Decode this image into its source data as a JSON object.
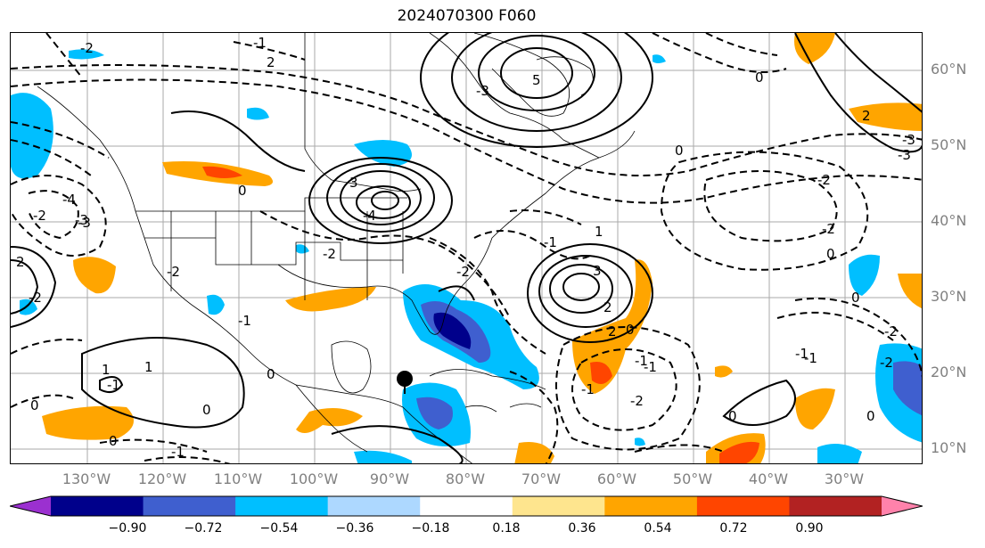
{
  "title": "2024070300 F060",
  "map": {
    "lat_labels": [
      "60°N",
      "50°N",
      "40°N",
      "30°N",
      "20°N",
      "10°N"
    ],
    "lon_labels": [
      "130°W",
      "120°W",
      "110°W",
      "100°W",
      "90°W",
      "80°W",
      "70°W",
      "60°W",
      "50°W",
      "40°W",
      "30°W"
    ],
    "contour_labels": [
      "-2",
      "-1",
      "2",
      "-3",
      "5",
      "3",
      "-4",
      "-3",
      "2",
      "0",
      "-1",
      "-2",
      "-2",
      "2",
      "0",
      "-2",
      "-4",
      "-3",
      "0",
      "-3",
      "-2",
      "1",
      "0",
      "-2",
      "-1",
      "-2",
      "2",
      "3",
      "0",
      "1",
      "-2",
      "-1",
      "-3",
      "-1",
      "0",
      "0",
      "-2",
      "-1",
      "-1",
      "2",
      "0",
      "-1",
      "-2",
      "-1",
      "0",
      "-2",
      "-1",
      "0",
      "0",
      "1",
      "0"
    ],
    "marker": "storm-center-dot"
  },
  "colorbar": {
    "ticks": [
      "−0.90",
      "−0.72",
      "−0.54",
      "−0.36",
      "−0.18",
      "0.18",
      "0.36",
      "0.54",
      "0.72",
      "0.90"
    ],
    "colors": [
      "#9b30d0",
      "#00008b",
      "#3f5fcf",
      "#00bfff",
      "#add8ff",
      "#ffffff",
      "#fee58e",
      "#ffa500",
      "#ff4500",
      "#b22222",
      "#ff82ab"
    ]
  }
}
